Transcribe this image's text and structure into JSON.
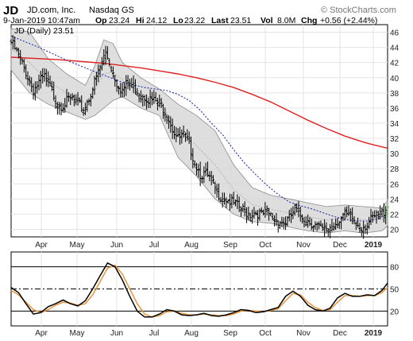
{
  "header": {
    "ticker": "JD",
    "company": "JD.com, Inc.",
    "exchange": "Nasdaq GS",
    "brand": "© StockCharts.com",
    "quote": {
      "date_time": "9-Jan-2019 10:47am",
      "open_label": "Op",
      "open": "23.24",
      "high_label": "Hi",
      "high": "24.12",
      "low_label": "Lo",
      "low": "23.22",
      "last_label": "Last",
      "last": "23.51",
      "vol_label": "Vol",
      "vol": "8.0M",
      "chg_label": "Chg",
      "chg": "+0.56 (+2.44%)"
    }
  },
  "chart_data": [
    {
      "type": "ohlc",
      "legend": "JD (Daily) 23.51",
      "ylim": [
        19,
        47
      ],
      "y_ticks": [
        20,
        22,
        24,
        26,
        28,
        30,
        32,
        34,
        36,
        38,
        40,
        42,
        44,
        46
      ],
      "x_ticks": [
        "Apr",
        "May",
        "Jun",
        "Jul",
        "Aug",
        "Sep",
        "Oct",
        "Nov",
        "Dec",
        "2019"
      ],
      "close_path": [
        [
          0,
          44.8
        ],
        [
          3,
          43.5
        ],
        [
          6,
          42.0
        ],
        [
          9,
          40.3
        ],
        [
          12,
          38.5
        ],
        [
          15,
          39.5
        ],
        [
          18,
          40.2
        ],
        [
          21,
          39.0
        ],
        [
          24,
          37.3
        ],
        [
          27,
          36.5
        ],
        [
          30,
          37.0
        ],
        [
          33,
          37.3
        ],
        [
          36,
          36.7
        ],
        [
          39,
          36.0
        ],
        [
          42,
          37.5
        ],
        [
          45,
          39.5
        ],
        [
          48,
          41.5
        ],
        [
          51,
          43.5
        ],
        [
          54,
          41.5
        ],
        [
          57,
          39.5
        ],
        [
          60,
          38.5
        ],
        [
          63,
          39.5
        ],
        [
          66,
          39.0
        ],
        [
          69,
          38.3
        ],
        [
          72,
          37.8
        ],
        [
          75,
          37.2
        ],
        [
          78,
          37.0
        ],
        [
          81,
          36.5
        ],
        [
          84,
          35.5
        ],
        [
          87,
          33.5
        ],
        [
          90,
          32.0
        ],
        [
          93,
          32.5
        ],
        [
          96,
          31.5
        ],
        [
          99,
          29.0
        ],
        [
          102,
          27.5
        ],
        [
          105,
          27.3
        ],
        [
          108,
          26.5
        ],
        [
          111,
          25.0
        ],
        [
          114,
          24.5
        ],
        [
          117,
          24.0
        ],
        [
          120,
          23.5
        ],
        [
          123,
          23.0
        ],
        [
          126,
          22.5
        ],
        [
          129,
          22.2
        ],
        [
          132,
          22.4
        ],
        [
          135,
          22.0
        ],
        [
          138,
          22.3
        ],
        [
          141,
          21.7
        ],
        [
          144,
          21.3
        ],
        [
          147,
          21.0
        ],
        [
          150,
          21.5
        ],
        [
          153,
          22.8
        ],
        [
          156,
          22.0
        ],
        [
          159,
          21.5
        ],
        [
          162,
          21.0
        ],
        [
          165,
          20.5
        ],
        [
          168,
          20.0
        ],
        [
          171,
          20.3
        ],
        [
          174,
          20.8
        ],
        [
          177,
          21.5
        ],
        [
          180,
          22.0
        ],
        [
          183,
          21.8
        ],
        [
          186,
          21.0
        ],
        [
          189,
          20.5
        ],
        [
          192,
          20.8
        ],
        [
          195,
          21.5
        ],
        [
          198,
          22.0
        ],
        [
          201,
          22.5
        ],
        [
          203,
          23.5
        ]
      ],
      "ma50_path": [
        [
          0,
          45.5
        ],
        [
          15,
          44.0
        ],
        [
          30,
          42.3
        ],
        [
          45,
          40.8
        ],
        [
          60,
          39.4
        ],
        [
          72,
          38.7
        ],
        [
          84,
          38.3
        ],
        [
          90,
          37.8
        ],
        [
          96,
          37.0
        ],
        [
          102,
          35.7
        ],
        [
          108,
          34.0
        ],
        [
          114,
          32.5
        ],
        [
          120,
          30.5
        ],
        [
          126,
          28.7
        ],
        [
          132,
          27.2
        ],
        [
          138,
          25.8
        ],
        [
          144,
          24.6
        ],
        [
          150,
          23.6
        ],
        [
          156,
          23.1
        ],
        [
          162,
          22.7
        ],
        [
          168,
          22.2
        ],
        [
          174,
          21.7
        ],
        [
          180,
          21.3
        ],
        [
          186,
          21.1
        ],
        [
          192,
          21.1
        ],
        [
          198,
          21.4
        ],
        [
          203,
          22.0
        ]
      ],
      "ma200_path": [
        [
          0,
          42.7
        ],
        [
          25,
          42.4
        ],
        [
          50,
          41.9
        ],
        [
          70,
          41.3
        ],
        [
          80,
          40.9
        ],
        [
          90,
          40.5
        ],
        [
          100,
          40.0
        ],
        [
          110,
          39.4
        ],
        [
          120,
          38.7
        ],
        [
          130,
          37.8
        ],
        [
          140,
          36.8
        ],
        [
          150,
          35.6
        ],
        [
          160,
          34.4
        ],
        [
          170,
          33.3
        ],
        [
          180,
          32.3
        ],
        [
          190,
          31.5
        ],
        [
          196,
          31.1
        ],
        [
          203,
          30.7
        ]
      ],
      "band_upper": [
        [
          0,
          46.5
        ],
        [
          10,
          46.0
        ],
        [
          20,
          42.5
        ],
        [
          30,
          40.5
        ],
        [
          40,
          39.0
        ],
        [
          45,
          41.5
        ],
        [
          50,
          45.0
        ],
        [
          55,
          44.5
        ],
        [
          60,
          42.0
        ],
        [
          70,
          40.0
        ],
        [
          80,
          38.5
        ],
        [
          90,
          36.5
        ],
        [
          100,
          35.0
        ],
        [
          110,
          33.0
        ],
        [
          120,
          28.5
        ],
        [
          130,
          25.5
        ],
        [
          140,
          24.5
        ],
        [
          150,
          24.0
        ],
        [
          160,
          23.5
        ],
        [
          170,
          23.0
        ],
        [
          180,
          23.2
        ],
        [
          190,
          23.0
        ],
        [
          200,
          22.8
        ],
        [
          203,
          23.8
        ]
      ],
      "band_lower": [
        [
          0,
          41.0
        ],
        [
          10,
          38.0
        ],
        [
          20,
          36.5
        ],
        [
          30,
          35.5
        ],
        [
          40,
          34.5
        ],
        [
          45,
          35.0
        ],
        [
          50,
          36.0
        ],
        [
          55,
          37.0
        ],
        [
          60,
          37.5
        ],
        [
          70,
          36.0
        ],
        [
          80,
          35.0
        ],
        [
          90,
          29.5
        ],
        [
          100,
          27.0
        ],
        [
          110,
          24.0
        ],
        [
          120,
          22.0
        ],
        [
          130,
          21.0
        ],
        [
          140,
          20.8
        ],
        [
          150,
          20.3
        ],
        [
          160,
          19.8
        ],
        [
          170,
          19.5
        ],
        [
          180,
          19.8
        ],
        [
          190,
          19.5
        ],
        [
          200,
          19.8
        ],
        [
          203,
          20.5
        ]
      ]
    },
    {
      "type": "line",
      "ylim": [
        0,
        100
      ],
      "y_ticks": [
        20,
        50,
        80
      ],
      "levels": [
        20,
        50,
        80
      ],
      "x_ticks": [
        "Apr",
        "May",
        "Jun",
        "Jul",
        "Aug",
        "Sep",
        "Oct",
        "Nov",
        "Dec",
        "2019"
      ],
      "series": [
        {
          "color": "#000000",
          "path": [
            [
              0,
              52
            ],
            [
              4,
              45
            ],
            [
              8,
              30
            ],
            [
              12,
              16
            ],
            [
              16,
              18
            ],
            [
              20,
              26
            ],
            [
              24,
              30
            ],
            [
              28,
              35
            ],
            [
              32,
              30
            ],
            [
              36,
              27
            ],
            [
              40,
              34
            ],
            [
              44,
              50
            ],
            [
              48,
              68
            ],
            [
              52,
              85
            ],
            [
              56,
              80
            ],
            [
              60,
              62
            ],
            [
              64,
              40
            ],
            [
              68,
              20
            ],
            [
              72,
              12
            ],
            [
              76,
              12
            ],
            [
              80,
              16
            ],
            [
              84,
              22
            ],
            [
              88,
              20
            ],
            [
              92,
              15
            ],
            [
              96,
              14
            ],
            [
              100,
              15
            ],
            [
              104,
              17
            ],
            [
              108,
              14
            ],
            [
              112,
              13
            ],
            [
              116,
              15
            ],
            [
              120,
              18
            ],
            [
              124,
              22
            ],
            [
              128,
              21
            ],
            [
              132,
              18
            ],
            [
              136,
              19
            ],
            [
              140,
              22
            ],
            [
              144,
              25
            ],
            [
              148,
              40
            ],
            [
              152,
              47
            ],
            [
              156,
              40
            ],
            [
              160,
              28
            ],
            [
              164,
              22
            ],
            [
              168,
              20
            ],
            [
              172,
              24
            ],
            [
              176,
              38
            ],
            [
              180,
              44
            ],
            [
              184,
              40
            ],
            [
              188,
              40
            ],
            [
              192,
              42
            ],
            [
              196,
              41
            ],
            [
              200,
              48
            ],
            [
              203,
              58
            ]
          ]
        },
        {
          "color": "#e8963a",
          "path": [
            [
              0,
              48
            ],
            [
              4,
              42
            ],
            [
              8,
              32
            ],
            [
              12,
              22
            ],
            [
              16,
              18
            ],
            [
              20,
              22
            ],
            [
              24,
              28
            ],
            [
              28,
              32
            ],
            [
              32,
              31
            ],
            [
              36,
              28
            ],
            [
              40,
              30
            ],
            [
              44,
              42
            ],
            [
              48,
              60
            ],
            [
              52,
              78
            ],
            [
              56,
              82
            ],
            [
              60,
              70
            ],
            [
              64,
              50
            ],
            [
              68,
              30
            ],
            [
              72,
              16
            ],
            [
              76,
              12
            ],
            [
              80,
              14
            ],
            [
              84,
              19
            ],
            [
              88,
              20
            ],
            [
              92,
              17
            ],
            [
              96,
              15
            ],
            [
              100,
              15
            ],
            [
              104,
              16
            ],
            [
              108,
              15
            ],
            [
              112,
              14
            ],
            [
              116,
              14
            ],
            [
              120,
              16
            ],
            [
              124,
              20
            ],
            [
              128,
              21
            ],
            [
              132,
              20
            ],
            [
              136,
              19
            ],
            [
              140,
              21
            ],
            [
              144,
              23
            ],
            [
              148,
              34
            ],
            [
              152,
              44
            ],
            [
              156,
              42
            ],
            [
              160,
              32
            ],
            [
              164,
              25
            ],
            [
              168,
              21
            ],
            [
              172,
              22
            ],
            [
              176,
              32
            ],
            [
              180,
              41
            ],
            [
              184,
              41
            ],
            [
              188,
              40
            ],
            [
              192,
              41
            ],
            [
              196,
              41
            ],
            [
              200,
              45
            ],
            [
              203,
              52
            ]
          ]
        }
      ]
    }
  ]
}
